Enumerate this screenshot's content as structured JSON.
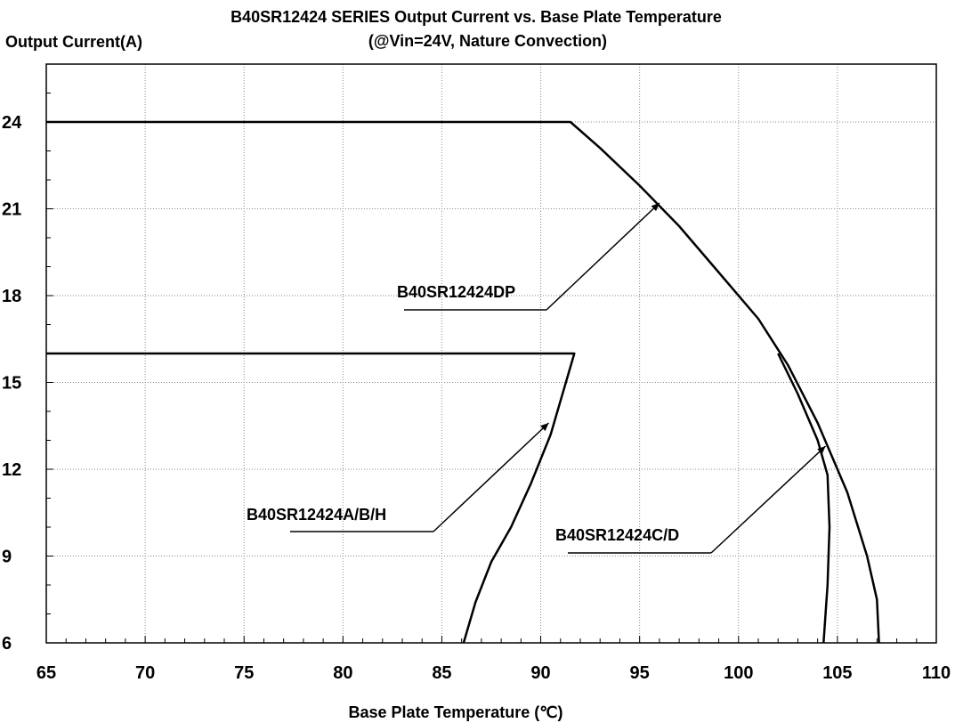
{
  "chart_data": {
    "type": "line",
    "title": "B40SR12424 SERIES Output Current vs. Base Plate Temperature",
    "subtitle": "(@Vin=24V, Nature Convection)",
    "xlabel": "Base Plate Temperature (℃)",
    "ylabel": "Output Current(A)",
    "xlim": [
      65,
      110
    ],
    "ylim": [
      6,
      26
    ],
    "x_ticks": [
      65,
      70,
      75,
      80,
      85,
      90,
      95,
      100,
      105,
      110
    ],
    "y_ticks": [
      6,
      9,
      12,
      15,
      18,
      21,
      24
    ],
    "x_tick_labels": [
      "65",
      "70",
      "75",
      "80",
      "85",
      "90",
      "95",
      "100",
      "105",
      "110"
    ],
    "y_tick_labels": [
      "6",
      "9",
      "12",
      "15",
      "18",
      "21",
      "24"
    ],
    "grid": true,
    "series": [
      {
        "name": "B40SR12424DP",
        "x": [
          65,
          91.5,
          93,
          95,
          97,
          99,
          101,
          102.5,
          104,
          105.5,
          106.5,
          107,
          107.1
        ],
        "y": [
          24,
          24,
          23.1,
          21.8,
          20.4,
          18.8,
          17.2,
          15.6,
          13.6,
          11.2,
          9,
          7.5,
          6
        ]
      },
      {
        "name": "B40SR12424A/B/H",
        "x": [
          65,
          91.7,
          90.5,
          89.5,
          88.5,
          87.5,
          86.7,
          86.1
        ],
        "y": [
          16,
          16,
          13.2,
          11.5,
          10,
          8.8,
          7.4,
          6
        ]
      },
      {
        "name": "B40SR12424C/D",
        "x": [
          102,
          103,
          104,
          104.5,
          104.6,
          104.5,
          104.3
        ],
        "y": [
          16,
          14.6,
          13,
          11.8,
          10,
          8,
          6
        ]
      }
    ],
    "annotations": [
      {
        "text": "B40SR12424DP",
        "points_to": [
          96,
          21.2
        ]
      },
      {
        "text": "B40SR12424A/B/H",
        "points_to": [
          90.4,
          13.6
        ]
      },
      {
        "text": "B40SR12424C/D",
        "points_to": [
          104.4,
          12.8
        ]
      }
    ]
  }
}
